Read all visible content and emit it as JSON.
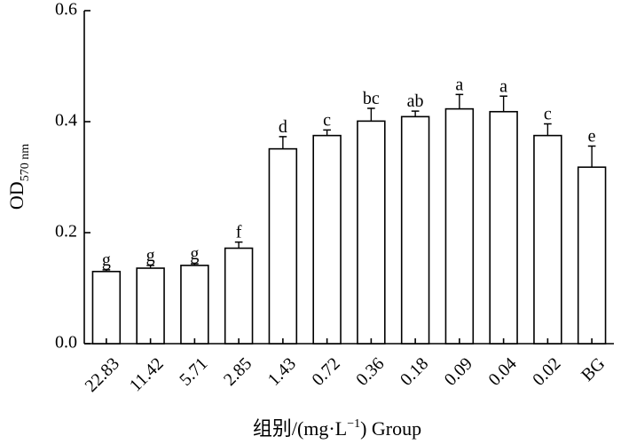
{
  "chart_data": {
    "type": "bar",
    "categories": [
      "22.83",
      "11.42",
      "5.71",
      "2.85",
      "1.43",
      "0.72",
      "0.36",
      "0.18",
      "0.09",
      "0.04",
      "0.02",
      "BG"
    ],
    "values": [
      0.13,
      0.136,
      0.141,
      0.172,
      0.351,
      0.375,
      0.401,
      0.409,
      0.423,
      0.418,
      0.375,
      0.318
    ],
    "errors": [
      0.003,
      0.005,
      0.003,
      0.011,
      0.022,
      0.01,
      0.023,
      0.01,
      0.026,
      0.028,
      0.021,
      0.038
    ],
    "significance": [
      "g",
      "g",
      "g",
      "f",
      "d",
      "c",
      "bc",
      "ab",
      "a",
      "a",
      "c",
      "e"
    ],
    "ylim": [
      0,
      0.6
    ],
    "yticks": [
      "0.0",
      "0.2",
      "0.4",
      "0.6"
    ],
    "ytick_values": [
      0,
      0.2,
      0.4,
      0.6
    ],
    "ylabel_main": "OD",
    "ylabel_sub": "570 nm",
    "xlabel_main": "组别/(mg·L",
    "xlabel_sup": "−1",
    "xlabel_tail": ")  Group",
    "bar_fill": "#ffffff",
    "bar_stroke": "#000000"
  }
}
